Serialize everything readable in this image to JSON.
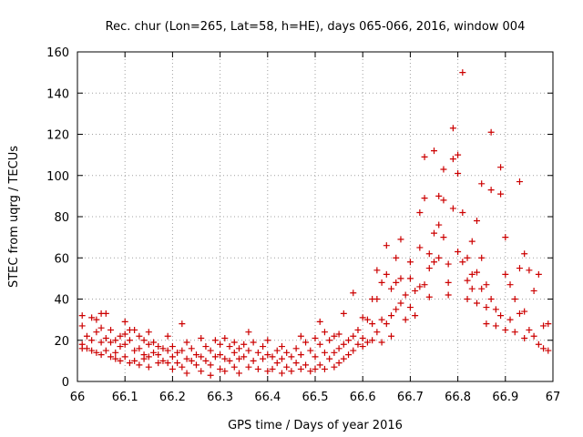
{
  "chart_data": {
    "type": "scatter",
    "title": "Rec. chur (Lon=265, Lat=58, h=HE), days 065-066, 2016, window 004",
    "xlabel": "GPS time / Days of year 2016",
    "ylabel": "STEC from uqrg / TECUs",
    "xlim": [
      66,
      67
    ],
    "ylim": [
      0,
      160
    ],
    "xticks": [
      66,
      66.1,
      66.2,
      66.3,
      66.4,
      66.5,
      66.6,
      66.7,
      66.8,
      66.9,
      67
    ],
    "xtick_labels": [
      "66",
      "66.1",
      "66.2",
      "66.3",
      "66.4",
      "66.5",
      "66.6",
      "66.7",
      "66.8",
      "66.9",
      "67"
    ],
    "yticks": [
      0,
      20,
      40,
      60,
      80,
      100,
      120,
      140,
      160
    ],
    "ytick_labels": [
      "0",
      "20",
      "40",
      "60",
      "80",
      "100",
      "120",
      "140",
      "160"
    ],
    "grid": true,
    "marker": "plus",
    "marker_color": "#cc0000",
    "series": [
      {
        "points": [
          [
            66.01,
            32
          ],
          [
            66.01,
            27
          ],
          [
            66.01,
            18
          ],
          [
            66.01,
            16
          ],
          [
            66.02,
            22
          ],
          [
            66.02,
            16
          ],
          [
            66.03,
            31
          ],
          [
            66.03,
            20
          ],
          [
            66.03,
            15
          ],
          [
            66.04,
            30
          ],
          [
            66.04,
            24
          ],
          [
            66.04,
            14
          ],
          [
            66.05,
            33
          ],
          [
            66.05,
            26
          ],
          [
            66.05,
            19
          ],
          [
            66.05,
            13
          ],
          [
            66.06,
            33
          ],
          [
            66.06,
            21
          ],
          [
            66.06,
            15
          ],
          [
            66.07,
            25
          ],
          [
            66.07,
            19
          ],
          [
            66.07,
            12
          ],
          [
            66.08,
            20
          ],
          [
            66.08,
            14
          ],
          [
            66.08,
            11
          ],
          [
            66.09,
            22
          ],
          [
            66.09,
            17
          ],
          [
            66.09,
            10
          ],
          [
            66.1,
            29
          ],
          [
            66.1,
            23
          ],
          [
            66.1,
            18
          ],
          [
            66.1,
            12
          ],
          [
            66.11,
            25
          ],
          [
            66.11,
            20
          ],
          [
            66.11,
            9
          ],
          [
            66.12,
            25
          ],
          [
            66.12,
            15
          ],
          [
            66.12,
            10
          ],
          [
            66.13,
            22
          ],
          [
            66.13,
            16
          ],
          [
            66.13,
            8
          ],
          [
            66.14,
            20
          ],
          [
            66.14,
            13
          ],
          [
            66.14,
            11
          ],
          [
            66.15,
            24
          ],
          [
            66.15,
            18
          ],
          [
            66.15,
            12
          ],
          [
            66.15,
            7
          ],
          [
            66.16,
            19
          ],
          [
            66.16,
            14
          ],
          [
            66.17,
            17
          ],
          [
            66.17,
            13
          ],
          [
            66.17,
            9
          ],
          [
            66.18,
            16
          ],
          [
            66.18,
            10
          ],
          [
            66.19,
            22
          ],
          [
            66.19,
            15
          ],
          [
            66.19,
            9
          ],
          [
            66.2,
            17
          ],
          [
            66.2,
            12
          ],
          [
            66.2,
            6
          ],
          [
            66.21,
            14
          ],
          [
            66.21,
            9
          ],
          [
            66.22,
            28
          ],
          [
            66.22,
            15
          ],
          [
            66.22,
            7
          ],
          [
            66.23,
            19
          ],
          [
            66.23,
            11
          ],
          [
            66.23,
            4
          ],
          [
            66.24,
            16
          ],
          [
            66.24,
            10
          ],
          [
            66.25,
            13
          ],
          [
            66.25,
            8
          ],
          [
            66.26,
            21
          ],
          [
            66.26,
            12
          ],
          [
            66.26,
            5
          ],
          [
            66.27,
            17
          ],
          [
            66.27,
            10
          ],
          [
            66.28,
            15
          ],
          [
            66.28,
            8
          ],
          [
            66.28,
            3
          ],
          [
            66.29,
            20
          ],
          [
            66.29,
            12
          ],
          [
            66.3,
            18
          ],
          [
            66.3,
            13
          ],
          [
            66.3,
            6
          ],
          [
            66.31,
            21
          ],
          [
            66.31,
            11
          ],
          [
            66.31,
            5
          ],
          [
            66.32,
            17
          ],
          [
            66.32,
            10
          ],
          [
            66.33,
            19
          ],
          [
            66.33,
            14
          ],
          [
            66.33,
            7
          ],
          [
            66.34,
            16
          ],
          [
            66.34,
            11
          ],
          [
            66.34,
            4
          ],
          [
            66.35,
            18
          ],
          [
            66.35,
            12
          ],
          [
            66.36,
            24
          ],
          [
            66.36,
            15
          ],
          [
            66.36,
            7
          ],
          [
            66.37,
            19
          ],
          [
            66.37,
            10
          ],
          [
            66.38,
            14
          ],
          [
            66.38,
            6
          ],
          [
            66.39,
            17
          ],
          [
            66.39,
            11
          ],
          [
            66.4,
            20
          ],
          [
            66.4,
            13
          ],
          [
            66.4,
            5
          ],
          [
            66.41,
            12
          ],
          [
            66.41,
            6
          ],
          [
            66.42,
            15
          ],
          [
            66.42,
            9
          ],
          [
            66.43,
            17
          ],
          [
            66.43,
            11
          ],
          [
            66.43,
            4
          ],
          [
            66.44,
            14
          ],
          [
            66.44,
            7
          ],
          [
            66.45,
            12
          ],
          [
            66.45,
            5
          ],
          [
            66.46,
            16
          ],
          [
            66.46,
            9
          ],
          [
            66.47,
            22
          ],
          [
            66.47,
            13
          ],
          [
            66.47,
            6
          ],
          [
            66.48,
            19
          ],
          [
            66.48,
            8
          ],
          [
            66.49,
            15
          ],
          [
            66.49,
            5
          ],
          [
            66.5,
            21
          ],
          [
            66.5,
            12
          ],
          [
            66.5,
            6
          ],
          [
            66.51,
            29
          ],
          [
            66.51,
            18
          ],
          [
            66.51,
            8
          ],
          [
            66.52,
            24
          ],
          [
            66.52,
            14
          ],
          [
            66.52,
            6
          ],
          [
            66.53,
            20
          ],
          [
            66.53,
            11
          ],
          [
            66.54,
            22
          ],
          [
            66.54,
            14
          ],
          [
            66.54,
            7
          ],
          [
            66.55,
            23
          ],
          [
            66.55,
            16
          ],
          [
            66.55,
            9
          ],
          [
            66.56,
            33
          ],
          [
            66.56,
            18
          ],
          [
            66.56,
            11
          ],
          [
            66.57,
            20
          ],
          [
            66.57,
            13
          ],
          [
            66.58,
            43
          ],
          [
            66.58,
            22
          ],
          [
            66.58,
            15
          ],
          [
            66.59,
            25
          ],
          [
            66.59,
            18
          ],
          [
            66.6,
            31
          ],
          [
            66.6,
            21
          ],
          [
            66.6,
            17
          ],
          [
            66.61,
            30
          ],
          [
            66.61,
            19
          ],
          [
            66.62,
            40
          ],
          [
            66.62,
            28
          ],
          [
            66.62,
            20
          ],
          [
            66.63,
            54
          ],
          [
            66.63,
            40
          ],
          [
            66.63,
            24
          ],
          [
            66.64,
            48
          ],
          [
            66.64,
            30
          ],
          [
            66.64,
            19
          ],
          [
            66.65,
            66
          ],
          [
            66.65,
            52
          ],
          [
            66.65,
            28
          ],
          [
            66.66,
            45
          ],
          [
            66.66,
            32
          ],
          [
            66.66,
            22
          ],
          [
            66.67,
            60
          ],
          [
            66.67,
            48
          ],
          [
            66.67,
            35
          ],
          [
            66.68,
            69
          ],
          [
            66.68,
            50
          ],
          [
            66.68,
            38
          ],
          [
            66.69,
            42
          ],
          [
            66.69,
            30
          ],
          [
            66.7,
            58
          ],
          [
            66.7,
            50
          ],
          [
            66.7,
            36
          ],
          [
            66.71,
            44
          ],
          [
            66.71,
            32
          ],
          [
            66.72,
            82
          ],
          [
            66.72,
            65
          ],
          [
            66.72,
            46
          ],
          [
            66.73,
            109
          ],
          [
            66.73,
            89
          ],
          [
            66.73,
            47
          ],
          [
            66.74,
            62
          ],
          [
            66.74,
            55
          ],
          [
            66.74,
            41
          ],
          [
            66.75,
            112
          ],
          [
            66.75,
            72
          ],
          [
            66.75,
            58
          ],
          [
            66.76,
            90
          ],
          [
            66.76,
            76
          ],
          [
            66.76,
            60
          ],
          [
            66.77,
            103
          ],
          [
            66.77,
            88
          ],
          [
            66.77,
            70
          ],
          [
            66.78,
            57
          ],
          [
            66.78,
            48
          ],
          [
            66.78,
            42
          ],
          [
            66.79,
            123
          ],
          [
            66.79,
            108
          ],
          [
            66.79,
            84
          ],
          [
            66.8,
            110
          ],
          [
            66.8,
            101
          ],
          [
            66.8,
            63
          ],
          [
            66.81,
            150
          ],
          [
            66.81,
            82
          ],
          [
            66.81,
            58
          ],
          [
            66.82,
            60
          ],
          [
            66.82,
            49
          ],
          [
            66.82,
            40
          ],
          [
            66.83,
            68
          ],
          [
            66.83,
            52
          ],
          [
            66.83,
            45
          ],
          [
            66.84,
            78
          ],
          [
            66.84,
            53
          ],
          [
            66.84,
            38
          ],
          [
            66.85,
            96
          ],
          [
            66.85,
            60
          ],
          [
            66.85,
            45
          ],
          [
            66.86,
            47
          ],
          [
            66.86,
            36
          ],
          [
            66.86,
            28
          ],
          [
            66.87,
            121
          ],
          [
            66.87,
            93
          ],
          [
            66.87,
            40
          ],
          [
            66.88,
            35
          ],
          [
            66.88,
            27
          ],
          [
            66.89,
            104
          ],
          [
            66.89,
            91
          ],
          [
            66.89,
            32
          ],
          [
            66.9,
            70
          ],
          [
            66.9,
            52
          ],
          [
            66.9,
            25
          ],
          [
            66.91,
            47
          ],
          [
            66.91,
            30
          ],
          [
            66.92,
            40
          ],
          [
            66.92,
            24
          ],
          [
            66.93,
            97
          ],
          [
            66.93,
            55
          ],
          [
            66.93,
            33
          ],
          [
            66.94,
            62
          ],
          [
            66.94,
            34
          ],
          [
            66.94,
            21
          ],
          [
            66.95,
            54
          ],
          [
            66.95,
            25
          ],
          [
            66.96,
            44
          ],
          [
            66.96,
            22
          ],
          [
            66.97,
            52
          ],
          [
            66.97,
            18
          ],
          [
            66.98,
            27
          ],
          [
            66.98,
            16
          ],
          [
            66.99,
            28
          ],
          [
            66.99,
            15
          ]
        ]
      }
    ]
  }
}
